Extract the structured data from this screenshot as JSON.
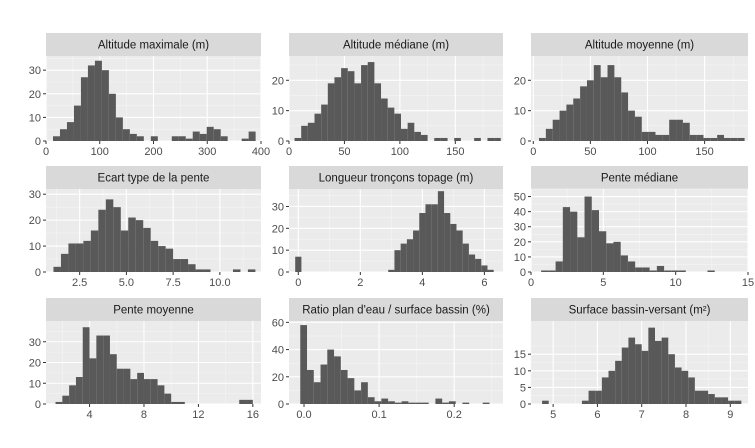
{
  "colors": {
    "panel_bg": "#ebebeb",
    "strip_bg": "#d9d9d9",
    "grid_major": "#ffffff",
    "grid_minor": "#f5f5f5",
    "bar_fill": "#595959",
    "text": "#1a1a1a",
    "tick_text": "#4d4d4d"
  },
  "chart_data": [
    {
      "type": "bar",
      "title": "Altitude maximale (m)",
      "bin_edges": [
        13,
        26,
        39,
        52,
        65,
        78,
        91,
        104,
        117,
        130,
        143,
        156,
        169,
        182,
        195,
        208,
        221,
        234,
        247,
        260,
        273,
        286,
        299,
        312,
        325,
        338,
        351,
        364,
        377,
        390
      ],
      "values": [
        2,
        5,
        8,
        15,
        27,
        32,
        34,
        30,
        20,
        10,
        5,
        3,
        2,
        0,
        2,
        0,
        0,
        2,
        2,
        1,
        4,
        3,
        6,
        5,
        2,
        0,
        0,
        1,
        4
      ],
      "xlim": [
        0,
        400
      ],
      "ylim": [
        0,
        36
      ],
      "xticks": [
        0,
        100,
        200,
        300,
        400
      ],
      "xtick_labels": [
        "0",
        "100",
        "200",
        "300",
        "400"
      ],
      "yticks": [
        0,
        10,
        20,
        30
      ],
      "ytick_labels": [
        "0",
        "10",
        "20",
        "30"
      ],
      "grid": true
    },
    {
      "type": "bar",
      "title": "Altitude médiane (m)",
      "bin_edges": [
        5,
        11,
        17,
        23,
        29,
        35,
        41,
        47,
        53,
        59,
        65,
        71,
        77,
        83,
        89,
        95,
        101,
        107,
        113,
        119,
        125,
        131,
        137,
        143,
        149,
        155,
        161,
        167,
        173,
        179,
        185,
        191
      ],
      "values": [
        1,
        5,
        6,
        9,
        12,
        19,
        21,
        24,
        23,
        19,
        25,
        26,
        19,
        14,
        11,
        9,
        4,
        6,
        3,
        2,
        0,
        1,
        1,
        0,
        1,
        0,
        0,
        1,
        0,
        1,
        1
      ],
      "xlim": [
        0,
        193
      ],
      "ylim": [
        0,
        28
      ],
      "xticks": [
        0,
        50,
        100,
        150
      ],
      "xtick_labels": [
        "0",
        "50",
        "100",
        "150"
      ],
      "yticks": [
        0,
        10,
        20
      ],
      "ytick_labels": [
        "0",
        "10",
        "20"
      ],
      "grid": true
    },
    {
      "type": "bar",
      "title": "Altitude moyenne (m)",
      "bin_edges": [
        5,
        11,
        17,
        23,
        29,
        35,
        41,
        47,
        53,
        59,
        65,
        71,
        77,
        83,
        89,
        95,
        101,
        107,
        113,
        119,
        125,
        131,
        137,
        143,
        149,
        155,
        161,
        167,
        173,
        179,
        185
      ],
      "values": [
        1,
        4,
        7,
        10,
        12,
        14,
        18,
        20,
        25,
        21,
        25,
        21,
        16,
        10,
        8,
        3,
        3,
        2,
        2,
        7,
        7,
        6,
        2,
        2,
        1,
        1,
        2,
        1,
        1,
        1
      ],
      "xlim": [
        -2,
        188
      ],
      "ylim": [
        0,
        28
      ],
      "xticks": [
        0,
        50,
        100,
        150
      ],
      "xtick_labels": [
        "0",
        "50",
        "100",
        "150"
      ],
      "yticks": [
        0,
        10,
        20
      ],
      "ytick_labels": [
        "0",
        "10",
        "20"
      ],
      "grid": true
    },
    {
      "type": "bar",
      "title": "Ecart type de la pente",
      "bin_edges": [
        1.1,
        1.5,
        1.9,
        2.3,
        2.7,
        3.1,
        3.5,
        3.9,
        4.3,
        4.7,
        5.1,
        5.5,
        5.9,
        6.3,
        6.7,
        7.1,
        7.5,
        7.9,
        8.3,
        8.7,
        9.1,
        9.5,
        9.9,
        10.3,
        10.7,
        11.1,
        11.5,
        11.9
      ],
      "values": [
        2,
        7,
        11,
        11,
        12,
        16,
        24,
        28,
        25,
        16,
        21,
        20,
        17,
        12,
        10,
        9,
        5,
        5,
        3,
        1,
        1,
        0,
        0,
        0,
        1,
        0,
        1
      ],
      "xlim": [
        0.7,
        12.2
      ],
      "ylim": [
        0,
        32
      ],
      "xticks": [
        2.5,
        5.0,
        7.5,
        10.0
      ],
      "xtick_labels": [
        "2.5",
        "5.0",
        "7.5",
        "10.0"
      ],
      "yticks": [
        0,
        10,
        20,
        30
      ],
      "ytick_labels": [
        "0",
        "10",
        "20",
        "30"
      ],
      "grid": true
    },
    {
      "type": "bar",
      "title": "Longueur tronçons topage (m)",
      "bin_edges": [
        -0.1,
        0.1,
        0.3,
        0.5,
        0.7,
        0.9,
        1.1,
        1.3,
        1.5,
        1.7,
        1.9,
        2.1,
        2.3,
        2.5,
        2.7,
        2.9,
        3.1,
        3.3,
        3.5,
        3.7,
        3.9,
        4.1,
        4.3,
        4.5,
        4.7,
        4.9,
        5.1,
        5.3,
        5.5,
        5.7,
        5.9,
        6.1,
        6.3
      ],
      "values": [
        7,
        0,
        0,
        0,
        0,
        0,
        0,
        0,
        0,
        0,
        0,
        0,
        0,
        0,
        0,
        1,
        10,
        13,
        15,
        19,
        27,
        31,
        31,
        37,
        27,
        22,
        19,
        13,
        8,
        6,
        3,
        1
      ],
      "xlim": [
        -0.3,
        6.6
      ],
      "ylim": [
        0,
        38
      ],
      "xticks": [
        0,
        2,
        4,
        6
      ],
      "xtick_labels": [
        "0",
        "2",
        "4",
        "6"
      ],
      "yticks": [
        0,
        10,
        20,
        30
      ],
      "ytick_labels": [
        "0",
        "10",
        "20",
        "30"
      ],
      "grid": true
    },
    {
      "type": "bar",
      "title": "Pente médiane",
      "bin_edges": [
        0.7,
        1.2,
        1.7,
        2.2,
        2.7,
        3.2,
        3.7,
        4.2,
        4.7,
        5.2,
        5.7,
        6.2,
        6.7,
        7.2,
        7.7,
        8.2,
        8.7,
        9.2,
        9.7,
        10.2,
        10.7,
        11.2,
        11.7,
        12.2,
        12.7,
        13.2,
        13.7,
        14.2
      ],
      "values": [
        1,
        1,
        7,
        43,
        40,
        23,
        50,
        41,
        27,
        19,
        20,
        11,
        7,
        3,
        3,
        1,
        4,
        1,
        1,
        1,
        0,
        0,
        0,
        1,
        0,
        0,
        0,
        1
      ],
      "xlim": [
        0,
        15
      ],
      "ylim": [
        0,
        55
      ],
      "xticks": [
        0,
        5,
        10,
        15
      ],
      "xtick_labels": [
        "0",
        "5",
        "10",
        "15"
      ],
      "yticks": [
        0,
        10,
        20,
        30,
        40,
        50
      ],
      "ytick_labels": [
        "0",
        "10",
        "20",
        "30",
        "40",
        "50"
      ],
      "grid": true
    },
    {
      "type": "bar",
      "title": "Pente moyenne",
      "bin_edges": [
        1.5,
        2.0,
        2.5,
        3.0,
        3.5,
        4.0,
        4.5,
        5.0,
        5.5,
        6.0,
        6.5,
        7.0,
        7.5,
        8.0,
        8.5,
        9.0,
        9.5,
        10.0,
        10.5,
        11.0,
        11.5,
        12.0,
        12.5,
        13.0,
        13.5,
        14.0,
        14.5,
        15.0,
        15.5,
        16.0
      ],
      "values": [
        1,
        4,
        9,
        13,
        37,
        22,
        33,
        33,
        24,
        17,
        17,
        12,
        15,
        12,
        12,
        9,
        5,
        1,
        1,
        0,
        0,
        0,
        0,
        0,
        0,
        0,
        0,
        2,
        2
      ],
      "xlim": [
        0.8,
        16.6
      ],
      "ylim": [
        0,
        40
      ],
      "xticks": [
        4,
        8,
        12,
        16
      ],
      "xtick_labels": [
        "4",
        "8",
        "12",
        "16"
      ],
      "yticks": [
        0,
        10,
        20,
        30
      ],
      "ytick_labels": [
        "0",
        "10",
        "20",
        "30"
      ],
      "grid": true
    },
    {
      "type": "bar",
      "title": "Ratio plan d'eau / surface bassin (%)",
      "bin_edges": [
        -0.005,
        0.004,
        0.013,
        0.022,
        0.031,
        0.04,
        0.049,
        0.058,
        0.067,
        0.076,
        0.085,
        0.094,
        0.103,
        0.112,
        0.121,
        0.13,
        0.139,
        0.148,
        0.157,
        0.166,
        0.175,
        0.184,
        0.193,
        0.202,
        0.211,
        0.22,
        0.229,
        0.238,
        0.247
      ],
      "values": [
        58,
        25,
        16,
        29,
        40,
        35,
        25,
        19,
        10,
        16,
        5,
        2,
        4,
        2,
        1,
        2,
        1,
        1,
        1,
        0,
        4,
        1,
        2,
        0,
        1,
        0,
        0,
        1
      ],
      "xlim": [
        -0.02,
        0.265
      ],
      "ylim": [
        0,
        61
      ],
      "xticks": [
        0.0,
        0.1,
        0.2
      ],
      "xtick_labels": [
        "0.0",
        "0.1",
        "0.2"
      ],
      "yticks": [
        0,
        20,
        40,
        60
      ],
      "ytick_labels": [
        "0",
        "20",
        "40",
        "60"
      ],
      "grid": true
    },
    {
      "type": "bar",
      "title": "Surface bassin-versant (m²)",
      "bin_edges": [
        4.75,
        4.9,
        5.05,
        5.2,
        5.35,
        5.5,
        5.65,
        5.8,
        5.95,
        6.1,
        6.25,
        6.4,
        6.55,
        6.7,
        6.85,
        7.0,
        7.15,
        7.3,
        7.45,
        7.6,
        7.75,
        7.9,
        8.05,
        8.2,
        8.35,
        8.5,
        8.65,
        8.8,
        8.95,
        9.1,
        9.25
      ],
      "values": [
        1,
        0,
        0,
        0,
        0,
        0,
        1,
        4,
        4,
        8,
        10,
        13,
        17,
        20,
        18,
        16,
        23,
        19,
        20,
        15,
        11,
        10,
        8,
        4,
        4,
        3,
        2,
        2,
        1,
        1
      ],
      "xlim": [
        4.5,
        9.4
      ],
      "ylim": [
        0,
        25
      ],
      "xticks": [
        5,
        6,
        7,
        8,
        9
      ],
      "xtick_labels": [
        "5",
        "6",
        "7",
        "8",
        "9"
      ],
      "yticks": [
        0,
        5,
        10,
        15
      ],
      "ytick_labels": [
        "0",
        "5",
        "10",
        "15"
      ],
      "grid": true
    }
  ]
}
